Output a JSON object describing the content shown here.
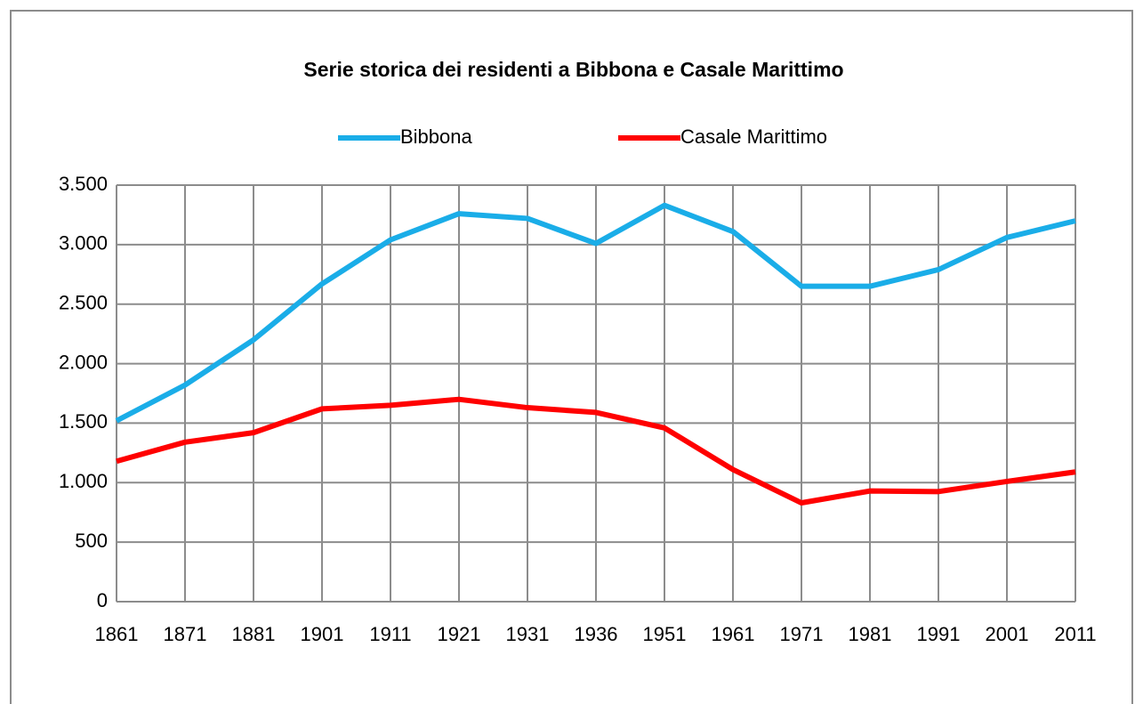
{
  "chart_data": {
    "type": "line",
    "title": "Serie storica dei residenti a Bibbona e Casale Marittimo",
    "categories": [
      "1861",
      "1871",
      "1881",
      "1901",
      "1911",
      "1921",
      "1931",
      "1936",
      "1951",
      "1961",
      "1971",
      "1981",
      "1991",
      "2001",
      "2011"
    ],
    "series": [
      {
        "name": "Bibbona",
        "color": "#1aade8",
        "values": [
          1520,
          1820,
          2200,
          2670,
          3040,
          3260,
          3220,
          3010,
          3330,
          3110,
          2650,
          2650,
          2790,
          3060,
          3200
        ]
      },
      {
        "name": "Casale Marittimo",
        "color": "#ff0000",
        "values": [
          1180,
          1340,
          1420,
          1620,
          1650,
          1700,
          1630,
          1590,
          1460,
          1110,
          830,
          930,
          925,
          1010,
          1090
        ]
      }
    ],
    "ylim": [
      0,
      3500
    ],
    "yticks": [
      0,
      500,
      {
        "value": 1000,
        "label": "1.000"
      },
      {
        "value": 1500,
        "label": "1.500"
      },
      {
        "value": 2000,
        "label": "2.000"
      },
      {
        "value": 2500,
        "label": "2.500"
      },
      {
        "value": 3000,
        "label": "3.000"
      },
      {
        "value": 3500,
        "label": "3.500"
      }
    ],
    "grid": true,
    "legend": "top"
  }
}
